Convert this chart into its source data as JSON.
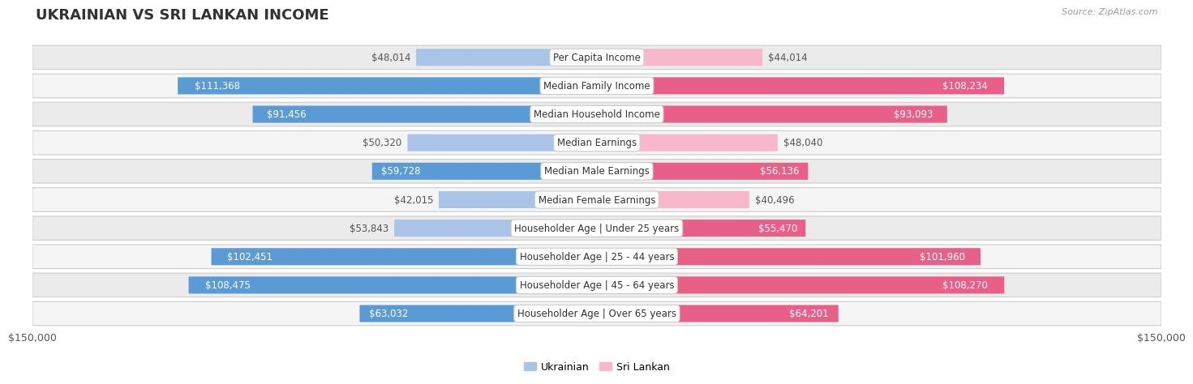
{
  "title": "UKRAINIAN VS SRI LANKAN INCOME",
  "source": "Source: ZipAtlas.com",
  "categories": [
    "Per Capita Income",
    "Median Family Income",
    "Median Household Income",
    "Median Earnings",
    "Median Male Earnings",
    "Median Female Earnings",
    "Householder Age | Under 25 years",
    "Householder Age | 25 - 44 years",
    "Householder Age | 45 - 64 years",
    "Householder Age | Over 65 years"
  ],
  "ukrainian_values": [
    48014,
    111368,
    91456,
    50320,
    59728,
    42015,
    53843,
    102451,
    108475,
    63032
  ],
  "srilanka_values": [
    44014,
    108234,
    93093,
    48040,
    56136,
    40496,
    55470,
    101960,
    108270,
    64201
  ],
  "ukrainian_labels": [
    "$48,014",
    "$111,368",
    "$91,456",
    "$50,320",
    "$59,728",
    "$42,015",
    "$53,843",
    "$102,451",
    "$108,475",
    "$63,032"
  ],
  "srilanka_labels": [
    "$44,014",
    "$108,234",
    "$93,093",
    "$48,040",
    "$56,136",
    "$40,496",
    "$55,470",
    "$101,960",
    "$108,270",
    "$64,201"
  ],
  "max_value": 150000,
  "ukrainian_color_light": "#aac4e8",
  "ukrainian_color_dark": "#5b9bd5",
  "srilanka_color_light": "#f7b8cc",
  "srilanka_color_dark": "#e8608a",
  "row_bg_color": "#ebebeb",
  "label_color_inside": "#ffffff",
  "label_color_outside": "#555555",
  "background_color": "#ffffff",
  "title_fontsize": 13,
  "label_fontsize": 8.5,
  "category_fontsize": 8.5,
  "axis_fontsize": 9,
  "legend_fontsize": 9,
  "inside_threshold": 55000
}
